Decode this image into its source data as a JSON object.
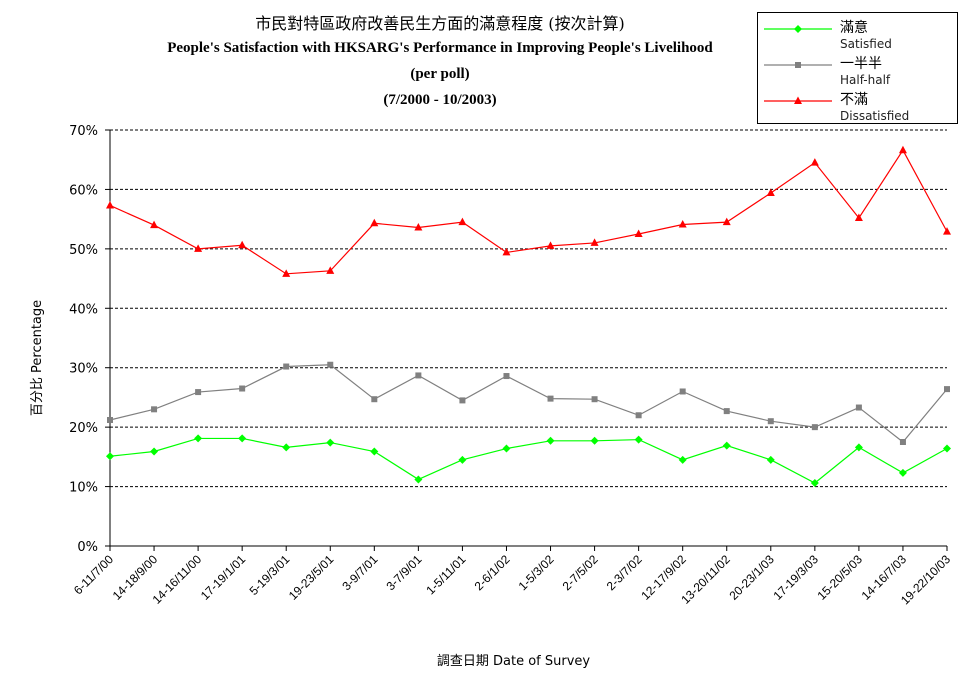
{
  "chart_data": {
    "type": "line",
    "title_zh": "市民對特區政府改善民生方面的滿意程度 (按次計算)",
    "title_en": "People's Satisfaction with HKSARG's Performance in Improving People's Livelihood",
    "subtitle": "(per poll)",
    "period": "(7/2000 - 10/2003)",
    "xlabel": "調查日期 Date of Survey",
    "ylabel": "百分比 Percentage",
    "ylim": [
      0,
      70
    ],
    "yticks": [
      "0%",
      "10%",
      "20%",
      "30%",
      "40%",
      "50%",
      "60%",
      "70%"
    ],
    "grid": true,
    "legend_position": "top-right",
    "categories": [
      "6-11/7/00",
      "14-18/9/00",
      "14-16/11/00",
      "17-19/1/01",
      "5-19/3/01",
      "19-23/5/01",
      "3-9/7/01",
      "3-7/9/01",
      "1-5/11/01",
      "2-6/1/02",
      "1-5/3/02",
      "2-7/5/02",
      "2-3/7/02",
      "12-17/9/02",
      "13-20/11/02",
      "20-23/1/03",
      "17-19/3/03",
      "15-20/5/03",
      "14-16/7/03",
      "19-22/10/03"
    ],
    "series": [
      {
        "name": "滿意",
        "name_en": "Satisfied",
        "color": "#00ff00",
        "marker": "diamond",
        "values": [
          15.1,
          15.9,
          18.1,
          18.1,
          16.6,
          17.4,
          15.9,
          11.2,
          14.5,
          16.4,
          17.7,
          17.7,
          17.9,
          14.5,
          16.9,
          14.5,
          10.6,
          16.6,
          12.3,
          16.4
        ]
      },
      {
        "name": "一半半",
        "name_en": "Half-half",
        "color": "#808080",
        "marker": "square",
        "values": [
          21.2,
          23.0,
          25.9,
          26.5,
          30.2,
          30.5,
          24.7,
          28.7,
          24.5,
          28.6,
          24.8,
          24.7,
          22.0,
          26.0,
          22.7,
          21.0,
          20.0,
          23.3,
          17.5,
          26.4
        ]
      },
      {
        "name": "不滿",
        "name_en": "Dissatisfied",
        "color": "#ff0000",
        "marker": "triangle",
        "values": [
          57.3,
          54.0,
          50.0,
          50.6,
          45.8,
          46.3,
          54.3,
          53.6,
          54.5,
          49.4,
          50.5,
          51.0,
          52.5,
          54.1,
          54.5,
          59.4,
          64.5,
          55.2,
          66.6,
          52.9
        ]
      }
    ]
  }
}
